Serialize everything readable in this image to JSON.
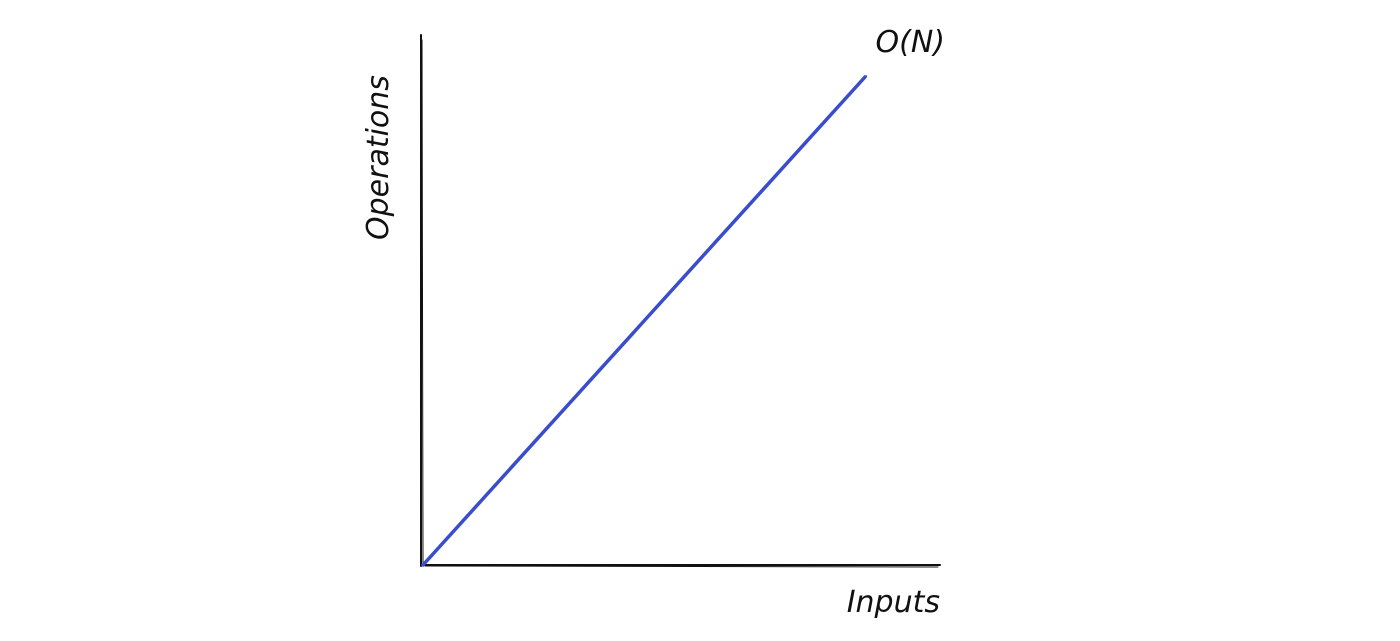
{
  "chart_data": {
    "type": "line",
    "title": "",
    "xlabel": "Inputs",
    "ylabel": "Operations",
    "grid": false,
    "x_ticks": false,
    "y_ticks": false,
    "series": [
      {
        "name": "O(N)",
        "x": [
          0,
          1
        ],
        "y": [
          0,
          1
        ],
        "color": "#3a4dcc"
      }
    ],
    "axis_color": "#111111"
  }
}
